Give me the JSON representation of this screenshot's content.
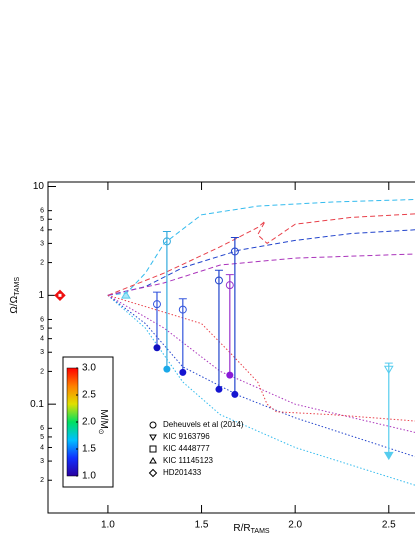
{
  "chart_data": {
    "type": "scatter",
    "xlabel": {
      "main": "R/R",
      "sub": "TAMS"
    },
    "ylabel": {
      "main": "Ω/Ω",
      "sub": "TAMS"
    },
    "log_y": true,
    "xlim": [
      0.68,
      2.64
    ],
    "ylim": [
      0.01,
      11
    ],
    "xticks": [
      {
        "value": 1,
        "label": "1.0"
      },
      {
        "value": 1.5,
        "label": "1.5"
      },
      {
        "value": 2,
        "label": "2.0"
      },
      {
        "value": 2.5,
        "label": "2.5"
      }
    ],
    "yticks": [
      10,
      1,
      0.1,
      {
        "value": 6,
        "label": "6"
      },
      {
        "value": 5,
        "label": "5"
      },
      {
        "value": 4,
        "label": "4"
      },
      {
        "value": 3,
        "label": "3"
      },
      {
        "value": 2,
        "label": "2"
      },
      {
        "value": 0.6,
        "label": "6"
      },
      {
        "value": 0.5,
        "label": "5"
      },
      {
        "value": 0.4,
        "label": "4"
      },
      {
        "value": 0.3,
        "label": "3"
      },
      {
        "value": 0.2,
        "label": "2"
      },
      {
        "value": 0.06,
        "label": "6"
      },
      {
        "value": 0.05,
        "label": "5"
      },
      {
        "value": 0.04,
        "label": "4"
      },
      {
        "value": 0.03,
        "label": "3"
      },
      {
        "value": 0.02,
        "label": "2"
      }
    ],
    "tracks": [
      {
        "color": "#33bbee",
        "style": "dashed",
        "x": [
          1,
          1.1,
          1.2,
          1.3,
          1.5,
          1.8,
          2.2,
          2.64
        ],
        "values": [
          1,
          1.05,
          1.6,
          3,
          5.5,
          6.6,
          7.2,
          7.6
        ]
      },
      {
        "color": "#2244cc",
        "style": "dashed",
        "x": [
          1,
          1.2,
          1.4,
          1.7,
          2.0,
          2.3,
          2.64
        ],
        "values": [
          1,
          1.2,
          1.8,
          2.6,
          3.2,
          3.7,
          4.0
        ]
      },
      {
        "color": "#e8404a",
        "style": "dashed",
        "x": [
          1,
          1.3,
          1.6,
          1.8,
          1.84,
          1.8,
          1.85,
          2.0,
          2.3,
          2.64
        ],
        "values": [
          1,
          1.6,
          2.8,
          4.2,
          4.8,
          3.6,
          3.0,
          4.5,
          5.2,
          5.6
        ]
      },
      {
        "color": "#aa33bb",
        "style": "dashed",
        "x": [
          1,
          1.3,
          1.6,
          2.0,
          2.64
        ],
        "values": [
          1,
          1.3,
          1.9,
          2.2,
          2.4
        ]
      },
      {
        "color": "#33bbee",
        "style": "dotted",
        "x": [
          1,
          1.2,
          1.4,
          1.6,
          2.0,
          2.64
        ],
        "values": [
          1,
          0.5,
          0.16,
          0.08,
          0.04,
          0.018
        ]
      },
      {
        "color": "#2244cc",
        "style": "dotted",
        "x": [
          1,
          1.2,
          1.4,
          1.7,
          2.0,
          2.64
        ],
        "values": [
          1,
          0.55,
          0.22,
          0.12,
          0.075,
          0.033
        ]
      },
      {
        "color": "#aa33bb",
        "style": "dotted",
        "x": [
          1,
          1.3,
          1.6,
          2.0,
          2.64
        ],
        "values": [
          1,
          0.5,
          0.2,
          0.1,
          0.055
        ]
      },
      {
        "color": "#e8404a",
        "style": "dotted",
        "x": [
          1,
          1.3,
          1.5,
          1.65,
          1.8,
          1.85,
          1.9,
          2.2,
          2.64
        ],
        "values": [
          1,
          0.7,
          0.55,
          0.3,
          0.16,
          0.1,
          0.085,
          0.08,
          0.07
        ]
      }
    ],
    "observed": {
      "x": [
        1.262,
        1.315,
        1.4,
        1.593,
        1.651,
        1.678
      ],
      "values": [
        0.83,
        3.13,
        0.74,
        1.37,
        1.24,
        2.53
      ],
      "upper": [
        1.07,
        3.86,
        0.93,
        1.7,
        1.55,
        3.4
      ],
      "lower": [
        0.33,
        0.21,
        0.19,
        0.137,
        0.185,
        0.12
      ],
      "colors": [
        "#3355dd",
        "#33aadd",
        "#3355dd",
        "#2244cc",
        "#9933cc",
        "#2244cc"
      ]
    },
    "predicted": {
      "x": [
        1.262,
        1.315,
        1.4,
        1.593,
        1.651,
        1.678
      ],
      "values": [
        0.33,
        0.21,
        0.196,
        0.137,
        0.185,
        0.123
      ],
      "colors": [
        "#1010c0",
        "#1aa8e8",
        "#1515d0",
        "#1515d0",
        "#8a1ad8",
        "#1515d0"
      ]
    },
    "kic9163796": {
      "x": 2.5,
      "value": 0.21,
      "lower": 0.034,
      "color": "#55ccee"
    },
    "kic11145123": {
      "x": 1.096,
      "value": 1.0,
      "color": "#55ccee"
    },
    "hd201433": {
      "x": 0.744,
      "value": 1.0,
      "color": "#ee1111"
    },
    "legend": [
      "Deheuvels et al (2014)",
      "KIC 9163796",
      "KIC 4448777",
      "KIC 11145123",
      "HD201433"
    ],
    "colorbar": {
      "label": {
        "main": "M/M",
        "sub": "⊙"
      },
      "lim": [
        1,
        3
      ],
      "ticks": [
        {
          "value": 3,
          "label": "3.0"
        },
        {
          "value": 2.5,
          "label": "2.5"
        },
        {
          "value": 2,
          "label": "2.0"
        },
        {
          "value": 1.5,
          "label": "1.5"
        },
        {
          "value": 1,
          "label": "1.0"
        }
      ],
      "colors": [
        "#2a00a0",
        "#1030ff",
        "#00c0ff",
        "#00e060",
        "#e0e000",
        "#ff8000",
        "#ff0000"
      ]
    }
  }
}
